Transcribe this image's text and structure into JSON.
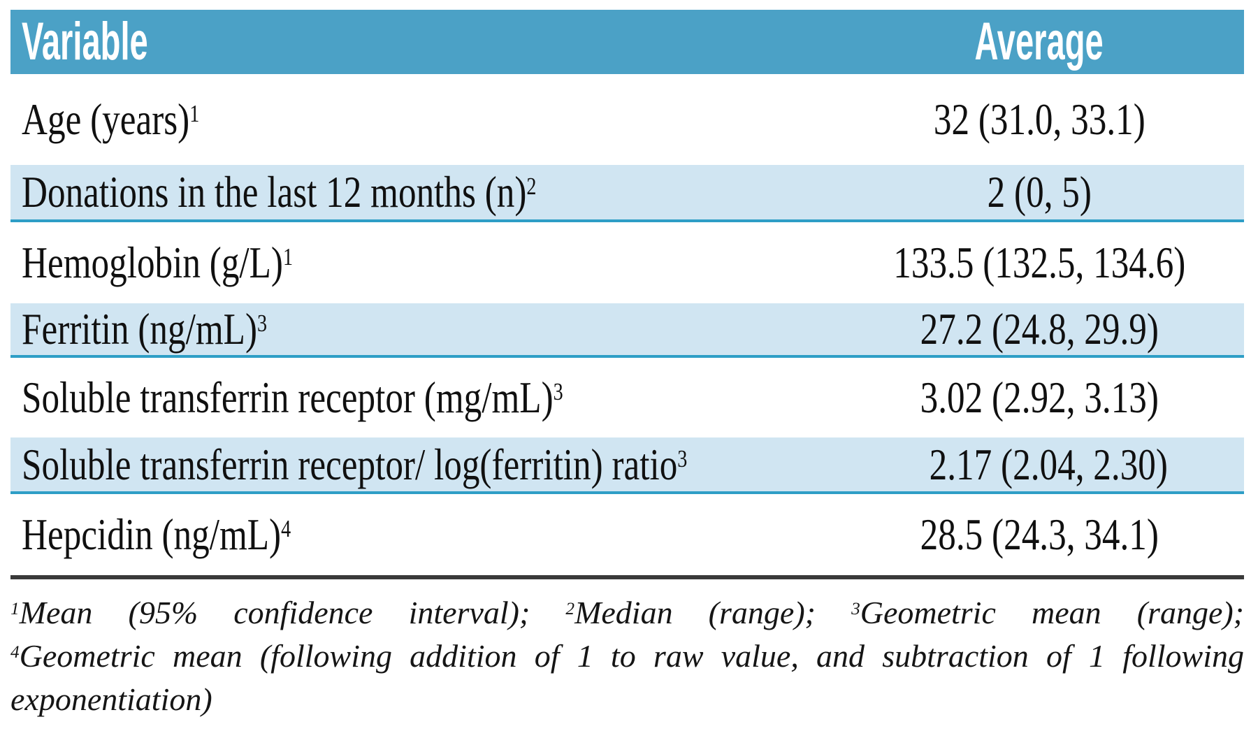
{
  "table": {
    "header": {
      "variable_label": "Variable",
      "average_label": "Average"
    },
    "rows": [
      {
        "variable": "Age (years)¹",
        "average": "32 (31.0, 33.1)"
      },
      {
        "variable": "Donations in the last 12 months (n)²",
        "average": "2 (0, 5)"
      },
      {
        "variable": "Hemoglobin (g/L)¹",
        "average": "133.5 (132.5, 134.6)"
      },
      {
        "variable": "Ferritin (ng/mL)³",
        "average": "27.2 (24.8, 29.9)"
      },
      {
        "variable": "Soluble transferrin receptor (mg/mL)³",
        "average": "3.02 (2.92, 3.13)"
      },
      {
        "variable": "Soluble transferrin receptor/ log(ferritin) ratio³",
        "average": "2.17 (2.04, 2.30)"
      },
      {
        "variable": "Hepcidin (ng/mL)⁴",
        "average": "28.5 (24.3, 34.1)"
      }
    ],
    "footnote_lines": [
      "¹Mean (95% confidence interval); ²Median (range); ³Geometric mean (range);",
      "⁴Geometric mean (following addition of 1 to raw value, and subtraction of 1 following",
      "exponentiation)"
    ]
  },
  "colors": {
    "header_bg": "#4BA1C6",
    "alt_row_bg": "#D0E5F2",
    "teal_border": "#2E9EC6",
    "divider": "#3A3A3A",
    "header_text": "#FFFFFF",
    "body_text": "#101010"
  }
}
